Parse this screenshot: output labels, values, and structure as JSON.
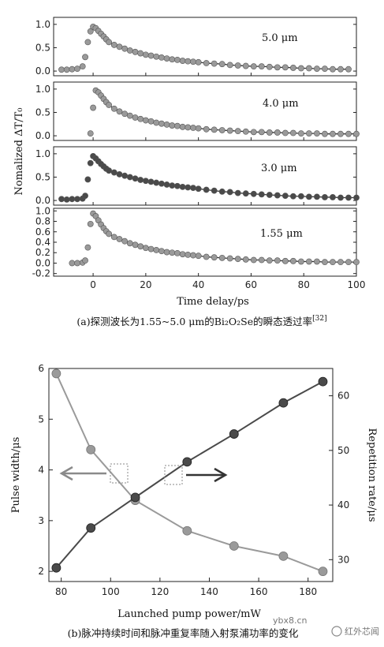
{
  "figure_a": {
    "caption": "(a)探测波长为1.55~5.0 μm的Bi₂O₂Se的瞬态透过率[32]",
    "caption_ref": "[32]",
    "caption_text": "(a)探测波长为1.55~5.0 μm的Bi₂O₂Se的瞬态透过率",
    "ylabel": "Nomalized ΔT/T₀",
    "xlabel": "Time delay/ps",
    "xticks": [
      "0",
      "20",
      "40",
      "60",
      "80",
      "100"
    ]
  },
  "figure_b": {
    "caption": "(b)脉冲持续时间和脉冲重复率随入射泵浦功率的变化",
    "ylabel_left": "Pulse width/μs",
    "ylabel_right": "Repetition rate/μs",
    "xlabel": "Launched pump power/mW",
    "xticks": [
      "80",
      "100",
      "120",
      "140",
      "160",
      "180"
    ],
    "yticks_left": [
      "2",
      "3",
      "4",
      "5",
      "6"
    ],
    "yticks_right": [
      "30",
      "40",
      "50",
      "60"
    ]
  },
  "watermark": {
    "site": "ybx8.cn",
    "brand": "红外芯闻"
  },
  "colors": {
    "light_series": "#9a9a9a",
    "dark_series": "#4a4a4a",
    "axis": "#222222"
  },
  "chart_data": [
    {
      "type": "scatter",
      "panel": "5.0 μm",
      "label": "5.0 μm",
      "xlim": [
        -15,
        100
      ],
      "ylim": [
        -0.1,
        1.15
      ],
      "yticks": [
        "0.0",
        "0.5",
        "1.0"
      ],
      "x": [
        -12,
        -10,
        -8,
        -6,
        -4,
        -3,
        -2,
        -1,
        0,
        1,
        2,
        3,
        4,
        5,
        6,
        8,
        10,
        12,
        14,
        16,
        18,
        20,
        22,
        24,
        26,
        28,
        30,
        32,
        34,
        36,
        38,
        40,
        43,
        46,
        49,
        52,
        55,
        58,
        61,
        64,
        67,
        70,
        73,
        76,
        79,
        82,
        85,
        88,
        91,
        94,
        97
      ],
      "y": [
        0.03,
        0.03,
        0.04,
        0.05,
        0.1,
        0.3,
        0.62,
        0.85,
        0.95,
        0.92,
        0.86,
        0.8,
        0.74,
        0.68,
        0.62,
        0.56,
        0.52,
        0.48,
        0.44,
        0.41,
        0.38,
        0.35,
        0.33,
        0.31,
        0.29,
        0.27,
        0.25,
        0.24,
        0.22,
        0.21,
        0.2,
        0.19,
        0.17,
        0.16,
        0.15,
        0.13,
        0.12,
        0.11,
        0.1,
        0.1,
        0.09,
        0.08,
        0.08,
        0.07,
        0.06,
        0.06,
        0.05,
        0.05,
        0.04,
        0.04,
        0.04
      ]
    },
    {
      "type": "scatter",
      "panel": "4.0 μm",
      "label": "4.0 μm",
      "xlim": [
        -15,
        100
      ],
      "ylim": [
        -0.1,
        1.15
      ],
      "yticks": [
        "0.0",
        "0.5",
        "1.0"
      ],
      "x": [
        -1,
        0,
        1,
        2,
        3,
        4,
        5,
        6,
        8,
        10,
        12,
        14,
        16,
        18,
        20,
        22,
        24,
        26,
        28,
        30,
        32,
        34,
        36,
        38,
        40,
        43,
        46,
        49,
        52,
        55,
        58,
        61,
        64,
        67,
        70,
        73,
        76,
        79,
        82,
        85,
        88,
        91,
        94,
        97,
        100
      ],
      "y": [
        0.05,
        0.6,
        0.97,
        0.93,
        0.86,
        0.79,
        0.72,
        0.66,
        0.58,
        0.52,
        0.47,
        0.43,
        0.39,
        0.36,
        0.33,
        0.31,
        0.28,
        0.26,
        0.24,
        0.22,
        0.21,
        0.19,
        0.18,
        0.17,
        0.16,
        0.14,
        0.13,
        0.12,
        0.11,
        0.1,
        0.09,
        0.08,
        0.08,
        0.07,
        0.07,
        0.06,
        0.06,
        0.05,
        0.05,
        0.05,
        0.04,
        0.04,
        0.04,
        0.04,
        0.04
      ]
    },
    {
      "type": "scatter",
      "panel": "3.0 μm",
      "label": "3.0 μm",
      "xlim": [
        -15,
        100
      ],
      "ylim": [
        -0.1,
        1.15
      ],
      "yticks": [
        "0.0",
        "0.5",
        "1.0"
      ],
      "x": [
        -12,
        -10,
        -8,
        -6,
        -4,
        -3,
        -2,
        -1,
        0,
        1,
        2,
        3,
        4,
        5,
        6,
        8,
        10,
        12,
        14,
        16,
        18,
        20,
        22,
        24,
        26,
        28,
        30,
        32,
        34,
        36,
        38,
        40,
        43,
        46,
        49,
        52,
        55,
        58,
        61,
        64,
        67,
        70,
        73,
        76,
        79,
        82,
        85,
        88,
        91,
        94,
        97,
        100
      ],
      "y": [
        0.03,
        0.02,
        0.03,
        0.03,
        0.04,
        0.1,
        0.45,
        0.8,
        0.95,
        0.9,
        0.84,
        0.78,
        0.73,
        0.68,
        0.64,
        0.6,
        0.56,
        0.53,
        0.5,
        0.47,
        0.44,
        0.42,
        0.4,
        0.38,
        0.36,
        0.34,
        0.32,
        0.31,
        0.29,
        0.28,
        0.27,
        0.25,
        0.23,
        0.21,
        0.19,
        0.18,
        0.16,
        0.15,
        0.14,
        0.13,
        0.12,
        0.11,
        0.1,
        0.09,
        0.09,
        0.08,
        0.08,
        0.07,
        0.07,
        0.06,
        0.06,
        0.06
      ]
    },
    {
      "type": "scatter",
      "panel": "1.55 μm",
      "label": "1.55 μm",
      "xlim": [
        -15,
        100
      ],
      "ylim": [
        -0.25,
        1.05
      ],
      "yticks": [
        "-0.2",
        "0.0",
        "0.2",
        "0.4",
        "0.6",
        "0.8",
        "1.0"
      ],
      "x": [
        -8,
        -6,
        -4,
        -3,
        -2,
        -1,
        0,
        1,
        2,
        3,
        4,
        5,
        6,
        8,
        10,
        12,
        14,
        16,
        18,
        20,
        22,
        24,
        26,
        28,
        30,
        32,
        34,
        36,
        38,
        40,
        43,
        46,
        49,
        52,
        55,
        58,
        61,
        64,
        67,
        70,
        73,
        76,
        79,
        82,
        85,
        88,
        91,
        94,
        97,
        100
      ],
      "y": [
        0.0,
        0.0,
        0.01,
        0.05,
        0.3,
        0.75,
        0.95,
        0.9,
        0.82,
        0.74,
        0.67,
        0.61,
        0.56,
        0.5,
        0.46,
        0.42,
        0.38,
        0.35,
        0.32,
        0.29,
        0.27,
        0.25,
        0.23,
        0.21,
        0.2,
        0.19,
        0.17,
        0.16,
        0.15,
        0.14,
        0.12,
        0.11,
        0.1,
        0.09,
        0.08,
        0.07,
        0.06,
        0.06,
        0.05,
        0.05,
        0.04,
        0.04,
        0.03,
        0.03,
        0.03,
        0.02,
        0.02,
        0.02,
        0.02,
        0.02
      ]
    },
    {
      "type": "line",
      "panel": "pulse",
      "xlim": [
        75,
        190
      ],
      "ylim_left": [
        1.8,
        6
      ],
      "ylim_right": [
        26,
        65
      ],
      "series": [
        {
          "axis": "left",
          "x": [
            78,
            92,
            110,
            131,
            150,
            170,
            186
          ],
          "y": [
            5.9,
            4.4,
            3.4,
            2.8,
            2.5,
            2.3,
            2.0
          ]
        },
        {
          "axis": "right",
          "x": [
            78,
            92,
            110,
            131,
            150,
            170,
            186
          ],
          "y": [
            28.5,
            35.8,
            41.4,
            47.9,
            53.0,
            58.7,
            62.6
          ]
        }
      ]
    }
  ]
}
